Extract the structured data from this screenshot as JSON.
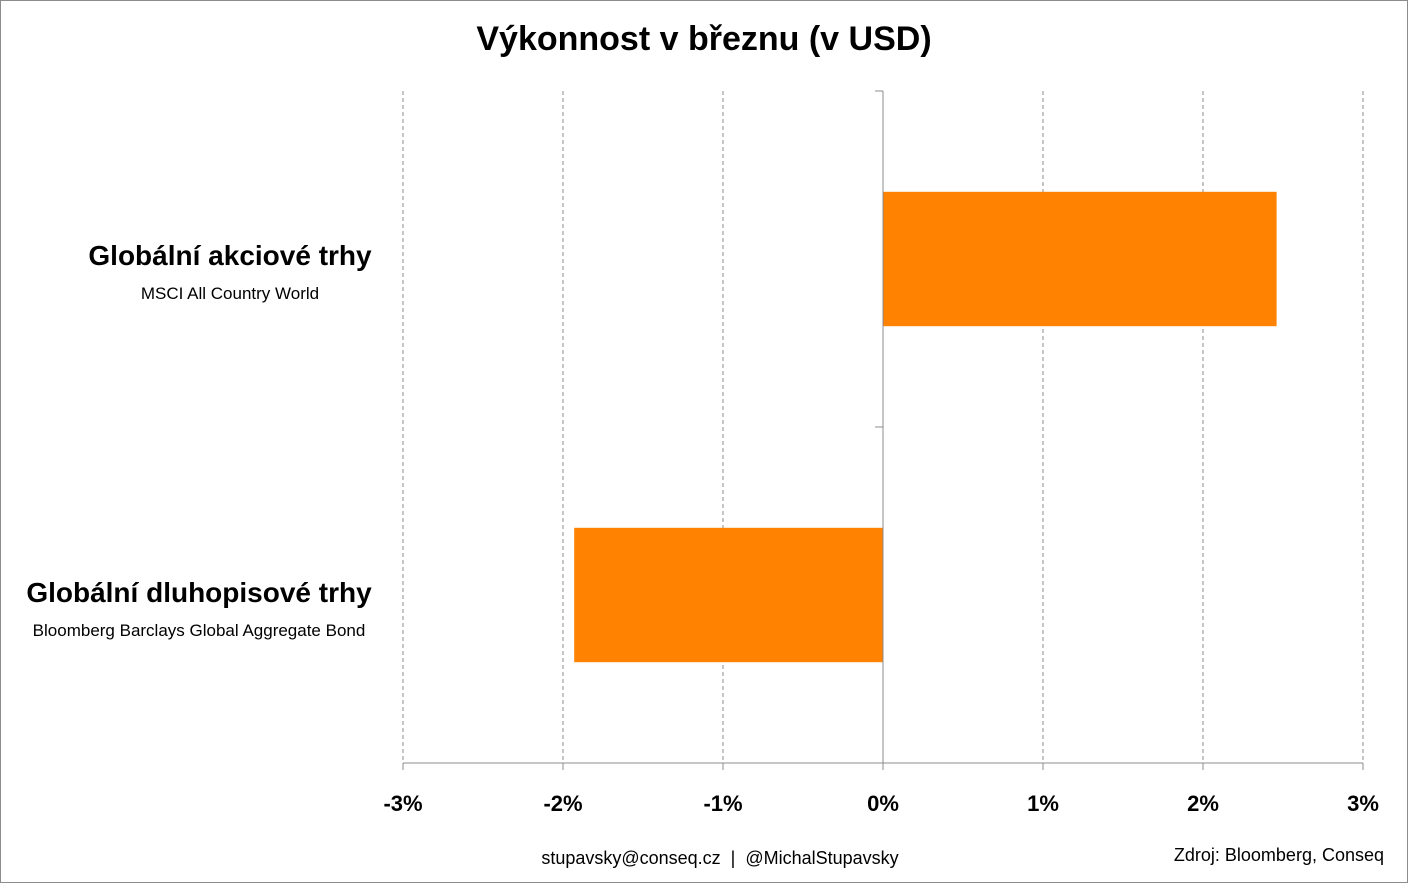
{
  "chart_data": {
    "type": "bar",
    "orientation": "horizontal",
    "title": "Výkonnost v březnu (v USD)",
    "categories": [
      {
        "name": "Globální akciové trhy",
        "subtitle": "MSCI All Country World"
      },
      {
        "name": "Globální dluhopisové trhy",
        "subtitle": "Bloomberg Barclays Global Aggregate Bond"
      }
    ],
    "values": [
      2.46,
      -1.93
    ],
    "unit": "%",
    "xlim": [
      -3,
      3
    ],
    "x_ticks": [
      -3,
      -2,
      -1,
      0,
      1,
      2,
      3
    ],
    "x_tick_labels": [
      "-3%",
      "-2%",
      "-1%",
      "0%",
      "1%",
      "2%",
      "3%"
    ],
    "grid": "vertical dashed",
    "bar_color": "#ff8200"
  },
  "footer": {
    "contact": "stupavsky@conseq.cz  |  @MichalStupavsky",
    "source": "Zdroj: Bloomberg, Conseq"
  }
}
